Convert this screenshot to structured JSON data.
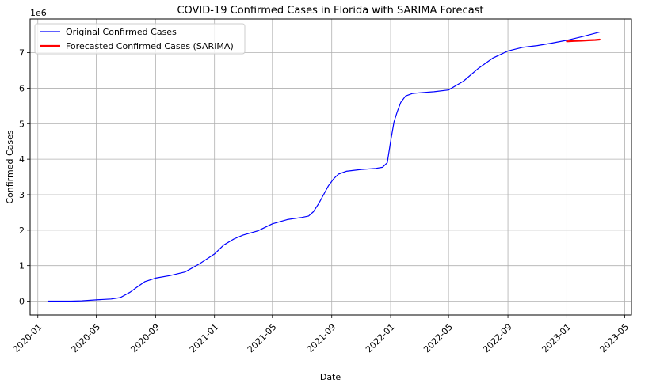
{
  "chart_data": {
    "type": "line",
    "title": "COVID-19 Confirmed Cases in Florida with SARIMA Forecast",
    "xlabel": "Date",
    "ylabel": "Confirmed Cases",
    "y_offset_label": "1e6",
    "xlim": [
      "2019-12-16",
      "2023-05-15"
    ],
    "ylim": [
      -0.39,
      7.95
    ],
    "grid": true,
    "legend_position": "top-left",
    "x_ticks": [
      "2020-01-01",
      "2020-05-01",
      "2020-09-01",
      "2021-01-01",
      "2021-05-01",
      "2021-09-01",
      "2022-01-01",
      "2022-05-01",
      "2022-09-01",
      "2023-01-01",
      "2023-05-01"
    ],
    "x_tick_labels": [
      "2020-01",
      "2020-05",
      "2020-09",
      "2021-01",
      "2021-05",
      "2021-09",
      "2022-01",
      "2022-05",
      "2022-09",
      "2023-01",
      "2023-05"
    ],
    "y_ticks": [
      0,
      1,
      2,
      3,
      4,
      5,
      6,
      7
    ],
    "y_tick_labels": [
      "0",
      "1",
      "2",
      "3",
      "4",
      "5",
      "6",
      "7"
    ],
    "series": [
      {
        "name": "Original Confirmed Cases",
        "color": "#0000ff",
        "x": [
          "2020-01-22",
          "2020-02-15",
          "2020-03-10",
          "2020-04-01",
          "2020-05-01",
          "2020-06-01",
          "2020-06-20",
          "2020-07-10",
          "2020-07-25",
          "2020-08-10",
          "2020-09-01",
          "2020-10-01",
          "2020-11-01",
          "2020-12-01",
          "2021-01-01",
          "2021-01-20",
          "2021-02-10",
          "2021-03-01",
          "2021-04-01",
          "2021-05-01",
          "2021-06-01",
          "2021-07-01",
          "2021-07-15",
          "2021-07-25",
          "2021-08-05",
          "2021-08-15",
          "2021-08-25",
          "2021-09-05",
          "2021-09-15",
          "2021-10-01",
          "2021-11-01",
          "2021-12-01",
          "2021-12-15",
          "2021-12-25",
          "2022-01-01",
          "2022-01-08",
          "2022-01-15",
          "2022-01-22",
          "2022-02-01",
          "2022-02-15",
          "2022-03-01",
          "2022-04-01",
          "2022-05-01",
          "2022-06-01",
          "2022-07-01",
          "2022-08-01",
          "2022-09-01",
          "2022-10-01",
          "2022-11-01",
          "2022-12-01",
          "2023-01-01",
          "2023-02-01",
          "2023-03-10"
        ],
        "values": [
          0,
          0,
          0.001,
          0.01,
          0.035,
          0.06,
          0.1,
          0.25,
          0.4,
          0.55,
          0.65,
          0.72,
          0.82,
          1.05,
          1.33,
          1.58,
          1.75,
          1.86,
          1.98,
          2.18,
          2.3,
          2.36,
          2.4,
          2.52,
          2.75,
          3.0,
          3.25,
          3.45,
          3.58,
          3.66,
          3.71,
          3.74,
          3.77,
          3.9,
          4.5,
          5.05,
          5.35,
          5.6,
          5.78,
          5.85,
          5.87,
          5.9,
          5.95,
          6.2,
          6.55,
          6.85,
          7.05,
          7.15,
          7.2,
          7.27,
          7.35,
          7.45,
          7.58
        ]
      },
      {
        "name": "Forecasted Confirmed Cases (SARIMA)",
        "color": "#ff0000",
        "x": [
          "2023-01-01",
          "2023-01-15",
          "2023-02-01",
          "2023-02-15",
          "2023-03-01",
          "2023-03-10"
        ],
        "values": [
          7.32,
          7.33,
          7.34,
          7.35,
          7.36,
          7.37
        ]
      }
    ]
  }
}
